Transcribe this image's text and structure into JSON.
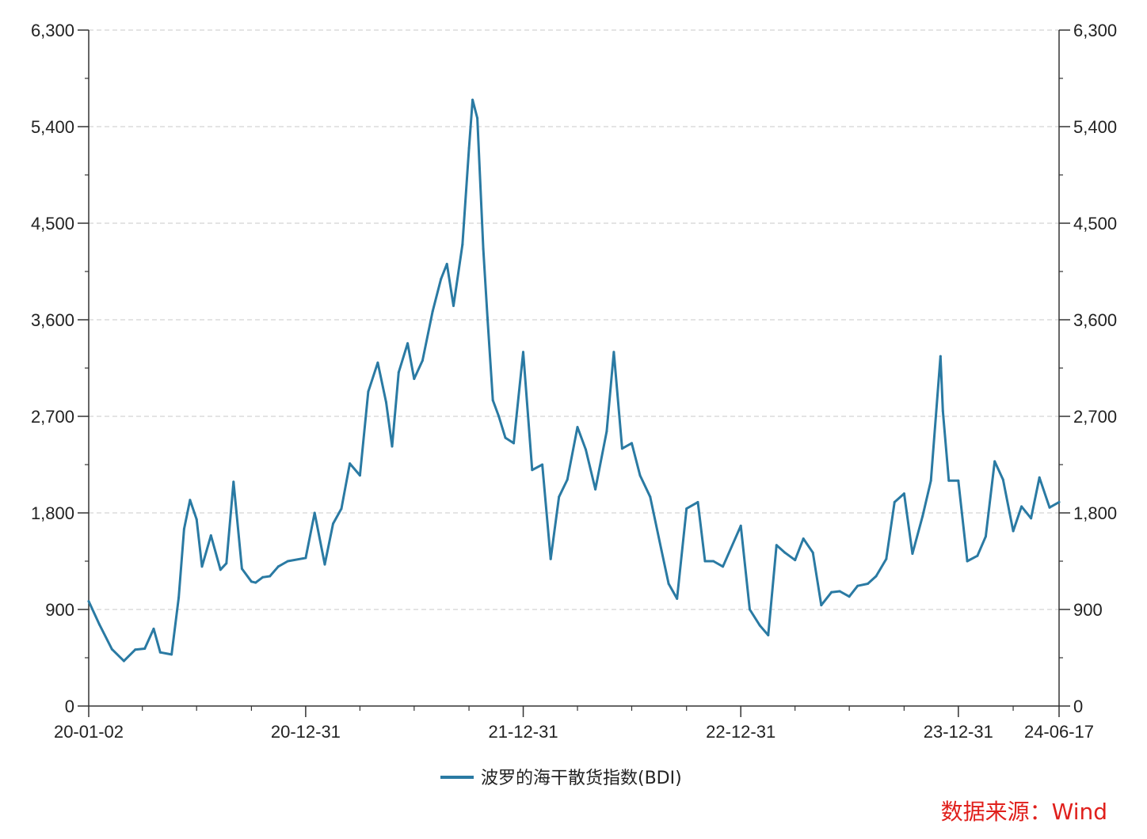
{
  "chart_data": {
    "type": "line",
    "source_note": "数据来源：Wind",
    "x_tick_labels": [
      "20-01-02",
      "20-12-31",
      "21-12-31",
      "22-12-31",
      "23-12-31",
      "24-06-17"
    ],
    "ylim": [
      0,
      6300
    ],
    "y_ticks": [
      0,
      900,
      1800,
      2700,
      3600,
      4500,
      5400,
      6300
    ],
    "y_tick_labels": [
      "0",
      "900",
      "1,800",
      "2,700",
      "3,600",
      "4,500",
      "5,400",
      "6,300"
    ],
    "grid": true,
    "legend_position": "bottom",
    "series": [
      {
        "name": "波罗的海干散货指数(BDI)",
        "color": "#2a7aa3",
        "dates": [
          "2020-01-02",
          "2020-01-20",
          "2020-02-10",
          "2020-03-01",
          "2020-03-20",
          "2020-04-05",
          "2020-04-20",
          "2020-05-01",
          "2020-05-20",
          "2020-06-01",
          "2020-06-10",
          "2020-06-20",
          "2020-07-01",
          "2020-07-10",
          "2020-07-25",
          "2020-08-10",
          "2020-08-20",
          "2020-09-01",
          "2020-09-15",
          "2020-10-01",
          "2020-10-08",
          "2020-10-20",
          "2020-11-01",
          "2020-11-15",
          "2020-12-01",
          "2020-12-31",
          "2021-01-15",
          "2021-02-01",
          "2021-02-15",
          "2021-03-01",
          "2021-03-15",
          "2021-04-01",
          "2021-04-15",
          "2021-05-01",
          "2021-05-15",
          "2021-05-25",
          "2021-06-05",
          "2021-06-20",
          "2021-07-01",
          "2021-07-15",
          "2021-08-01",
          "2021-08-15",
          "2021-08-25",
          "2021-09-05",
          "2021-09-20",
          "2021-10-01",
          "2021-10-07",
          "2021-10-15",
          "2021-10-25",
          "2021-11-01",
          "2021-11-10",
          "2021-11-20",
          "2021-12-01",
          "2021-12-15",
          "2021-12-31",
          "2022-01-15",
          "2022-02-01",
          "2022-02-15",
          "2022-03-01",
          "2022-03-15",
          "2022-04-01",
          "2022-04-15",
          "2022-05-01",
          "2022-05-20",
          "2022-06-01",
          "2022-06-15",
          "2022-07-01",
          "2022-07-15",
          "2022-08-01",
          "2022-08-20",
          "2022-09-01",
          "2022-09-15",
          "2022-10-01",
          "2022-10-20",
          "2022-11-01",
          "2022-11-15",
          "2022-12-01",
          "2022-12-31",
          "2023-01-15",
          "2023-02-01",
          "2023-02-15",
          "2023-03-01",
          "2023-03-15",
          "2023-04-01",
          "2023-04-15",
          "2023-05-01",
          "2023-05-15",
          "2023-06-01",
          "2023-06-15",
          "2023-07-01",
          "2023-07-15",
          "2023-08-01",
          "2023-08-15",
          "2023-09-01",
          "2023-09-15",
          "2023-10-01",
          "2023-10-15",
          "2023-11-01",
          "2023-11-15",
          "2023-12-01",
          "2023-12-05",
          "2023-12-15",
          "2023-12-31",
          "2024-01-15",
          "2024-02-01",
          "2024-02-15",
          "2024-03-01",
          "2024-03-15",
          "2024-04-01",
          "2024-04-15",
          "2024-05-01",
          "2024-05-15",
          "2024-06-01",
          "2024-06-17"
        ],
        "values": [
          976,
          760,
          530,
          420,
          525,
          535,
          720,
          500,
          480,
          1010,
          1650,
          1920,
          1740,
          1300,
          1590,
          1270,
          1330,
          2090,
          1280,
          1160,
          1150,
          1200,
          1210,
          1300,
          1350,
          1380,
          1800,
          1320,
          1700,
          1840,
          2260,
          2150,
          2930,
          3200,
          2830,
          2420,
          3110,
          3380,
          3050,
          3220,
          3680,
          3980,
          4120,
          3730,
          4300,
          5200,
          5650,
          5480,
          4260,
          3620,
          2850,
          2700,
          2500,
          2450,
          3300,
          2200,
          2250,
          1370,
          1950,
          2110,
          2600,
          2390,
          2020,
          2560,
          3300,
          2400,
          2450,
          2150,
          1950,
          1450,
          1140,
          1000,
          1840,
          1900,
          1350,
          1350,
          1300,
          1680,
          900,
          750,
          660,
          1500,
          1430,
          1360,
          1560,
          1430,
          940,
          1060,
          1070,
          1020,
          1120,
          1140,
          1210,
          1370,
          1900,
          1980,
          1420,
          1770,
          2100,
          3260,
          2750,
          2100,
          2100,
          1350,
          1400,
          1580,
          2280,
          2110,
          1630,
          1860,
          1750,
          2130,
          1850,
          1900
        ]
      }
    ]
  }
}
